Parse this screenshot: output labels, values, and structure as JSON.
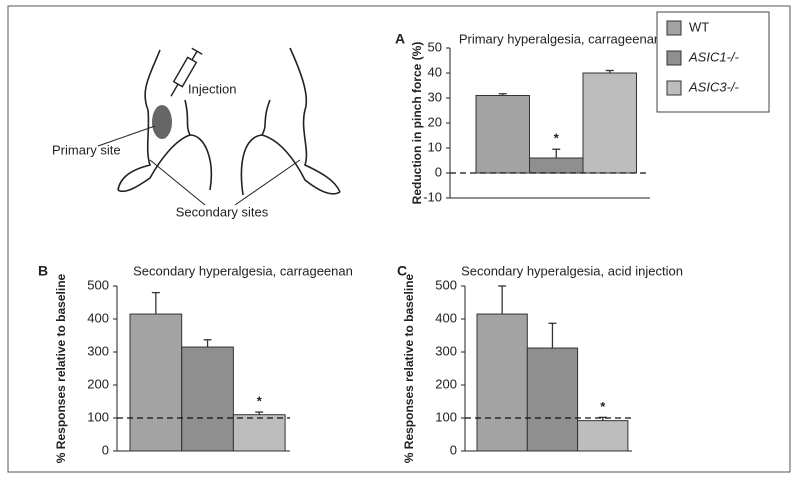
{
  "diagram": {
    "labels": [
      "Injection",
      "Primary site",
      "Secondary sites"
    ]
  },
  "chart_data": [
    {
      "type": "bar",
      "panel": "A",
      "title": "Primary hyperalgesia, carrageenan",
      "y_label": "Reduction in pinch force (%)",
      "ylim": [
        -10,
        50
      ],
      "yticks": [
        -10,
        0,
        10,
        20,
        30,
        40,
        50
      ],
      "baseline": 0,
      "legend": "top-right",
      "series": [
        {
          "name": "WT",
          "color": "#a3a3a3",
          "values": [
            31
          ],
          "errors": [
            0.7
          ]
        },
        {
          "name": "ASIC1-/-",
          "color": "#8f8f8f",
          "values": [
            6
          ],
          "errors": [
            3.5
          ]
        },
        {
          "name": "ASIC3-/-",
          "color": "#bdbdbd",
          "values": [
            40
          ],
          "errors": [
            1
          ]
        }
      ],
      "annotations": [
        {
          "text": "*",
          "series": 1
        }
      ]
    },
    {
      "type": "bar",
      "panel": "B",
      "title": "Secondary hyperalgesia, carrageenan",
      "y_label": "% Responses relative to baseline",
      "ylim": [
        0,
        500
      ],
      "yticks": [
        0,
        100,
        200,
        300,
        400,
        500
      ],
      "baseline": 100,
      "series": [
        {
          "name": "WT",
          "color": "#a3a3a3",
          "values": [
            415
          ],
          "errors": [
            65
          ]
        },
        {
          "name": "ASIC1-/-",
          "color": "#8f8f8f",
          "values": [
            315
          ],
          "errors": [
            22
          ]
        },
        {
          "name": "ASIC3-/-",
          "color": "#bdbdbd",
          "values": [
            110
          ],
          "errors": [
            8
          ]
        }
      ],
      "annotations": [
        {
          "text": "*",
          "series": 2
        }
      ]
    },
    {
      "type": "bar",
      "panel": "C",
      "title": "Secondary hyperalgesia, acid injection",
      "y_label": "% Responses relative to baseline",
      "ylim": [
        0,
        500
      ],
      "yticks": [
        0,
        100,
        200,
        300,
        400,
        500
      ],
      "baseline": 100,
      "series": [
        {
          "name": "WT",
          "color": "#a3a3a3",
          "values": [
            415
          ],
          "errors": [
            85
          ]
        },
        {
          "name": "ASIC1-/-",
          "color": "#8f8f8f",
          "values": [
            312
          ],
          "errors": [
            75
          ]
        },
        {
          "name": "ASIC3-/-",
          "color": "#bdbdbd",
          "values": [
            92
          ],
          "errors": [
            10
          ]
        }
      ],
      "annotations": [
        {
          "text": "*",
          "series": 2
        }
      ]
    }
  ]
}
